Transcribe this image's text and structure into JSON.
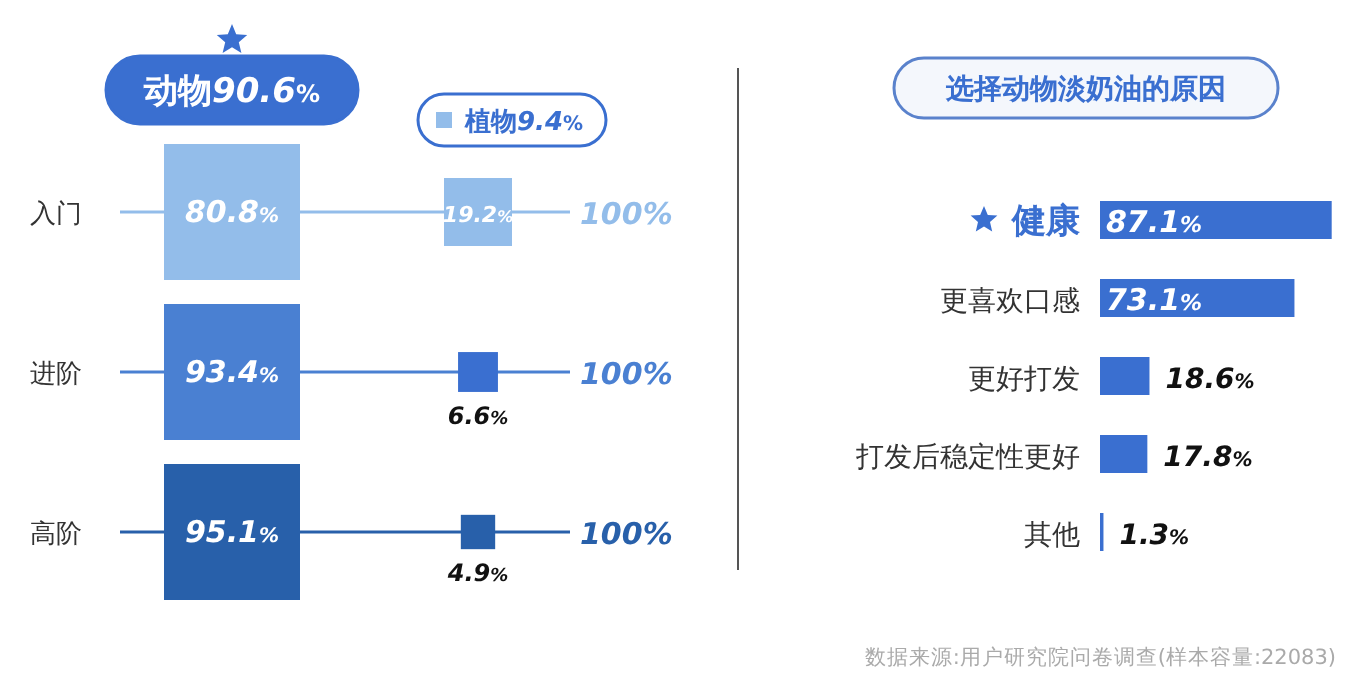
{
  "chart_data": [
    {
      "type": "other",
      "categories": [
        "入门",
        "进阶",
        "高阶"
      ],
      "series": [
        {
          "name": "动物",
          "color": "#3a6fd0",
          "colors": [
            "#93bdea",
            "#4a80d2",
            "#2860aa"
          ],
          "values": [
            80.8,
            93.4,
            95.1
          ],
          "value_labels": [
            "80.8%",
            "93.4%",
            "95.1%"
          ]
        },
        {
          "name": "植物",
          "color": "#3a6fd0",
          "colors": [
            "#93bdea",
            "#3a6fd0",
            "#2860aa"
          ],
          "values": [
            19.2,
            6.6,
            4.9
          ],
          "value_labels": [
            "19.2%",
            "6.6%",
            "4.9%"
          ]
        }
      ],
      "annotations": [
        "90.6%",
        "9.4%",
        "100%",
        "100%",
        "100%"
      ]
    },
    {
      "type": "bar",
      "orientation": "horizontal",
      "title": "选择动物淡奶油的原因",
      "categories": [
        "健康",
        "更喜欢口感",
        "更好打发",
        "打发后稳定性更好",
        "其他"
      ],
      "values": [
        87.1,
        73.1,
        18.6,
        17.8,
        1.3
      ],
      "color": "#3a6fd0",
      "value_labels": [
        "87.1%",
        "73.1%",
        "18.6%",
        "17.8%",
        "1.3%"
      ],
      "annotations": [
        "数据来源:用户研究院问卷调查(样本容量:22083)"
      ]
    }
  ]
}
